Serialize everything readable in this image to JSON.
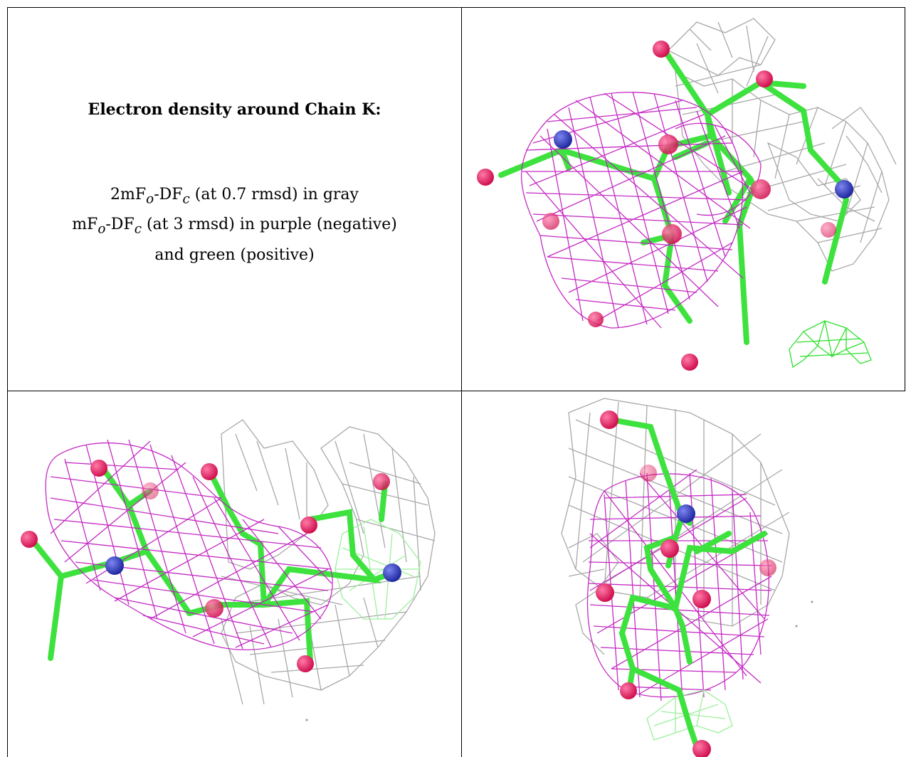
{
  "caption": {
    "title": "Electron density around Chain K:",
    "line1": {
      "a": "2mF",
      "o": "o",
      "b": "-DF",
      "c": "c",
      "rest": " (at 0.7 rmsd) in gray"
    },
    "line2": {
      "a": "mF",
      "o": "o",
      "b": "-DF",
      "c": "c",
      "rest": " (at 3 rmsd) in purple (negative)"
    },
    "line3": "and green (positive)"
  },
  "colors": {
    "carbon": "#3ee23e",
    "oxygen": "#e81e63",
    "nitrogen": "#3742c8",
    "mesh_negative": "#c11fc1",
    "mesh_gray": "#a8a8a8",
    "mesh_positive": "#2ee02e"
  },
  "panels": [
    {
      "name": "panel-top-right",
      "position": "top-right"
    },
    {
      "name": "panel-bottom-left",
      "position": "bottom-left"
    },
    {
      "name": "panel-bottom-right",
      "position": "bottom-right"
    }
  ]
}
